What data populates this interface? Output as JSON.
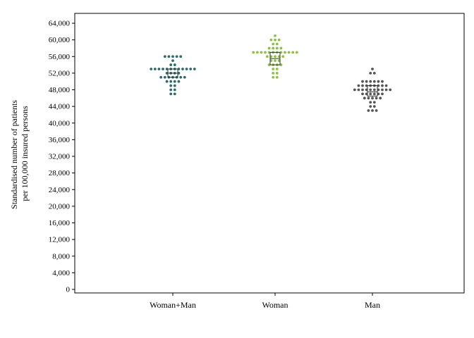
{
  "chart_data": {
    "type": "scatter",
    "subtype": "dot-plot",
    "title": "",
    "xlabel": "",
    "ylabel_lines": [
      "Standardised number of patients",
      "per 100,000 insured persons"
    ],
    "ylim": [
      0,
      66000
    ],
    "yticks": [
      0,
      4000,
      8000,
      12000,
      16000,
      20000,
      24000,
      28000,
      32000,
      36000,
      40000,
      44000,
      48000,
      52000,
      56000,
      60000,
      64000
    ],
    "ytick_labels": [
      "0",
      "4,000",
      "8,000",
      "12,000",
      "16,000",
      "20,000",
      "24,000",
      "28,000",
      "32,000",
      "36,000",
      "40,000",
      "44,000",
      "48,000",
      "52,000",
      "56,000",
      "60,000",
      "64,000"
    ],
    "categories": [
      "Woman+Man",
      "Woman",
      "Man"
    ],
    "grid": false,
    "legend": "none",
    "series": [
      {
        "category": "Woman+Man",
        "color": "#2e6b6e",
        "median": 52000,
        "q1": 51000,
        "q3": 53000,
        "rows": [
          {
            "y": 56000,
            "count": 5
          },
          {
            "y": 55000,
            "count": 1
          },
          {
            "y": 54000,
            "count": 2
          },
          {
            "y": 53000,
            "count": 12
          },
          {
            "y": 52000,
            "count": 4
          },
          {
            "y": 51000,
            "count": 7
          },
          {
            "y": 50000,
            "count": 4
          },
          {
            "y": 49000,
            "count": 2
          },
          {
            "y": 48000,
            "count": 2
          },
          {
            "y": 47000,
            "count": 2
          }
        ]
      },
      {
        "category": "Woman",
        "color": "#8dc33c",
        "median": 55500,
        "q1": 54000,
        "q3": 57000,
        "rows": [
          {
            "y": 61000,
            "count": 1
          },
          {
            "y": 60000,
            "count": 3
          },
          {
            "y": 59000,
            "count": 2
          },
          {
            "y": 58000,
            "count": 4
          },
          {
            "y": 57000,
            "count": 12
          },
          {
            "y": 56000,
            "count": 5
          },
          {
            "y": 55000,
            "count": 3
          },
          {
            "y": 54000,
            "count": 4
          },
          {
            "y": 53000,
            "count": 2
          },
          {
            "y": 52000,
            "count": 2
          },
          {
            "y": 51000,
            "count": 2
          }
        ]
      },
      {
        "category": "Man",
        "color": "#555555",
        "median": 47500,
        "q1": 46500,
        "q3": 49000,
        "rows": [
          {
            "y": 53000,
            "count": 1
          },
          {
            "y": 52000,
            "count": 2
          },
          {
            "y": 50000,
            "count": 6
          },
          {
            "y": 49000,
            "count": 8
          },
          {
            "y": 48000,
            "count": 10
          },
          {
            "y": 47000,
            "count": 6
          },
          {
            "y": 46000,
            "count": 5
          },
          {
            "y": 45000,
            "count": 2
          },
          {
            "y": 44000,
            "count": 2
          },
          {
            "y": 43000,
            "count": 3
          }
        ]
      }
    ]
  }
}
